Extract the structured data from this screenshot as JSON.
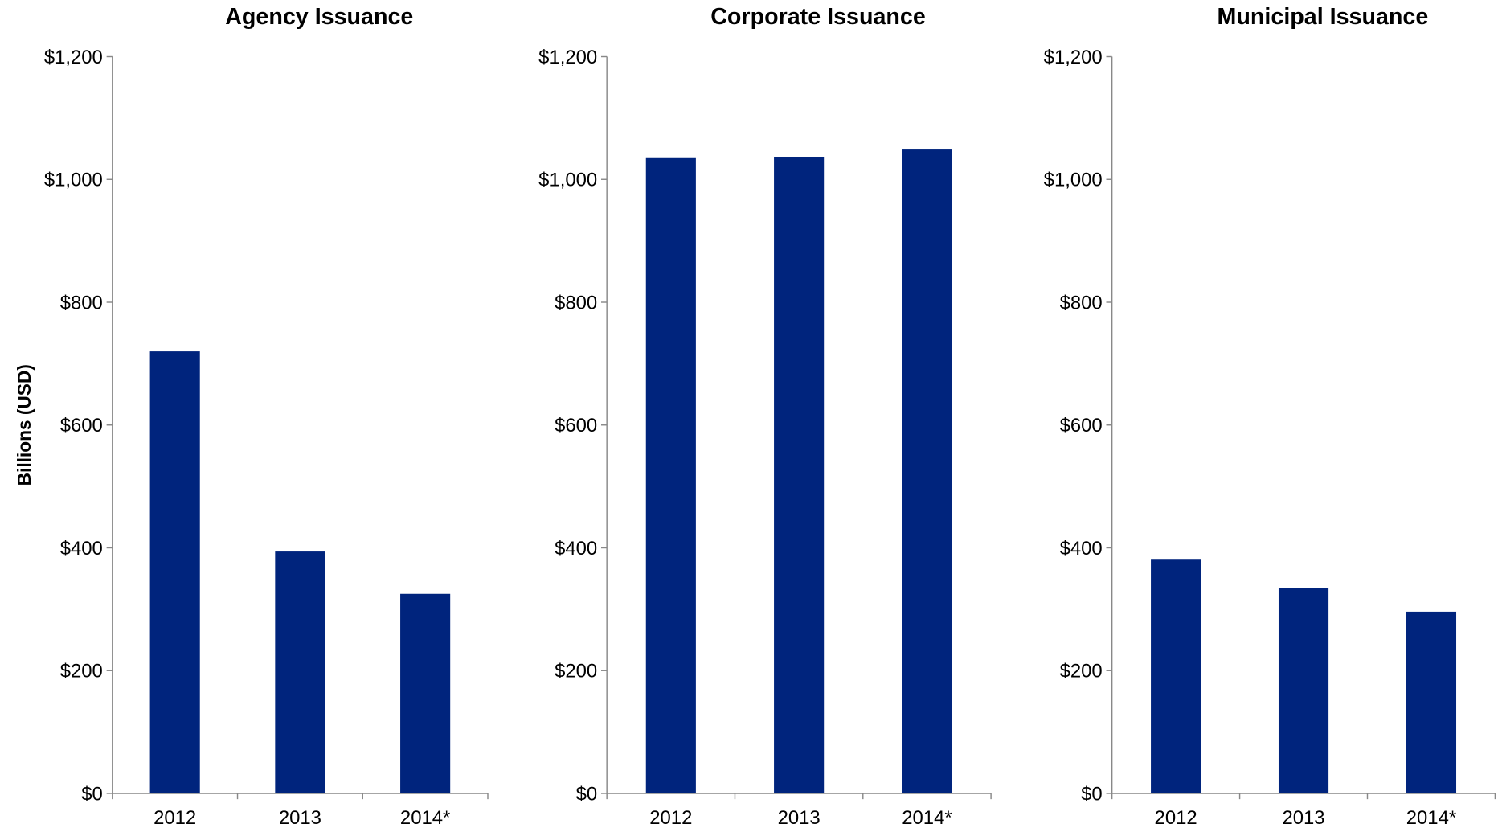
{
  "chart_data": [
    {
      "type": "bar",
      "title": "Agency Issuance",
      "ylabel": "Billions (USD)",
      "categories": [
        "2012",
        "2013",
        "2014*"
      ],
      "values": [
        720,
        394,
        325
      ],
      "color": "#00247d",
      "ylim": [
        0,
        1200
      ],
      "yticks": [
        {
          "value": 0,
          "label": "$0"
        },
        {
          "value": 200,
          "label": "$200"
        },
        {
          "value": 400,
          "label": "$400"
        },
        {
          "value": 600,
          "label": "$600"
        },
        {
          "value": 800,
          "label": "$800"
        },
        {
          "value": 1000,
          "label": "$1,000"
        },
        {
          "value": 1200,
          "label": "$1,200"
        }
      ]
    },
    {
      "type": "bar",
      "title": "Corporate Issuance",
      "categories": [
        "2012",
        "2013",
        "2014*"
      ],
      "values": [
        1036,
        1037,
        1050
      ],
      "color": "#00247d",
      "ylim": [
        0,
        1200
      ],
      "yticks": [
        {
          "value": 0,
          "label": "$0"
        },
        {
          "value": 200,
          "label": "$200"
        },
        {
          "value": 400,
          "label": "$400"
        },
        {
          "value": 600,
          "label": "$600"
        },
        {
          "value": 800,
          "label": "$800"
        },
        {
          "value": 1000,
          "label": "$1,000"
        },
        {
          "value": 1200,
          "label": "$1,200"
        }
      ]
    },
    {
      "type": "bar",
      "title": "Municipal Issuance",
      "categories": [
        "2012",
        "2013",
        "2014*"
      ],
      "values": [
        382,
        335,
        296
      ],
      "color": "#00247d",
      "ylim": [
        0,
        1200
      ],
      "yticks": [
        {
          "value": 0,
          "label": "$0"
        },
        {
          "value": 200,
          "label": "$200"
        },
        {
          "value": 400,
          "label": "$400"
        },
        {
          "value": 600,
          "label": "$600"
        },
        {
          "value": 800,
          "label": "$800"
        },
        {
          "value": 1000,
          "label": "$1,000"
        },
        {
          "value": 1200,
          "label": "$1,200"
        }
      ]
    }
  ]
}
